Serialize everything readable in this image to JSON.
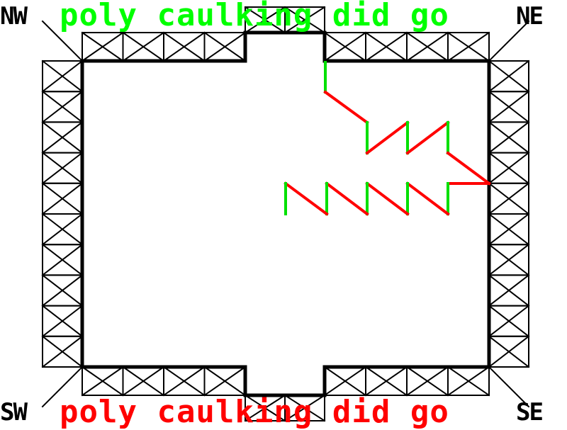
{
  "corners": {
    "nw": "NW",
    "ne": "NE",
    "sw": "SW",
    "se": "SE"
  },
  "messages": {
    "top": "poly caulking did go",
    "bottom": "poly caulking did go"
  },
  "colors": {
    "background": "#ffffff",
    "frame": "#000000",
    "corner_text": "#000000",
    "top_message": "#00ff00",
    "bottom_message": "#ff0000",
    "path_vertical": "#00e000",
    "path_diagonal": "#ff0000"
  }
}
